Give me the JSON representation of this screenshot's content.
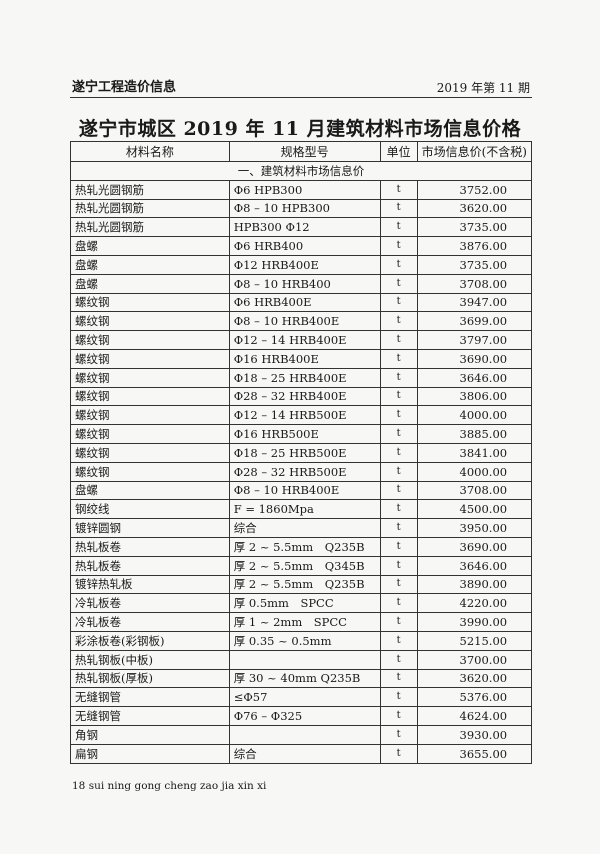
{
  "header": {
    "publication": "遂宁工程造价信息",
    "issue": "2019 年第 11 期"
  },
  "title": "遂宁市城区 2019 年 11 月建筑材料市场信息价格",
  "table": {
    "columns": [
      "材料名称",
      "规格型号",
      "单位",
      "市场信息价(不含税)"
    ],
    "section": "一、建筑材料市场信息价",
    "rows": [
      [
        "热轧光圆钢筋",
        "Φ6 HPB300",
        "t",
        "3752.00"
      ],
      [
        "热轧光圆钢筋",
        "Φ8 – 10 HPB300",
        "t",
        "3620.00"
      ],
      [
        "热轧光圆钢筋",
        "HPB300 Φ12",
        "t",
        "3735.00"
      ],
      [
        "盘螺",
        "Φ6 HRB400",
        "t",
        "3876.00"
      ],
      [
        "盘螺",
        "Φ12 HRB400E",
        "t",
        "3735.00"
      ],
      [
        "盘螺",
        "Φ8 – 10 HRB400",
        "t",
        "3708.00"
      ],
      [
        "螺纹钢",
        "Φ6 HRB400E",
        "t",
        "3947.00"
      ],
      [
        "螺纹钢",
        "Φ8 – 10 HRB400E",
        "t",
        "3699.00"
      ],
      [
        "螺纹钢",
        "Φ12 – 14 HRB400E",
        "t",
        "3797.00"
      ],
      [
        "螺纹钢",
        "Φ16 HRB400E",
        "t",
        "3690.00"
      ],
      [
        "螺纹钢",
        "Φ18 – 25 HRB400E",
        "t",
        "3646.00"
      ],
      [
        "螺纹钢",
        "Φ28 – 32 HRB400E",
        "t",
        "3806.00"
      ],
      [
        "螺纹钢",
        "Φ12 – 14 HRB500E",
        "t",
        "4000.00"
      ],
      [
        "螺纹钢",
        "Φ16 HRB500E",
        "t",
        "3885.00"
      ],
      [
        "螺纹钢",
        "Φ18 – 25 HRB500E",
        "t",
        "3841.00"
      ],
      [
        "螺纹钢",
        "Φ28 – 32 HRB500E",
        "t",
        "4000.00"
      ],
      [
        "盘螺",
        "Φ8 – 10 HRB400E",
        "t",
        "3708.00"
      ],
      [
        "钢绞线",
        "F = 1860Mpa",
        "t",
        "4500.00"
      ],
      [
        "镀锌圆钢",
        "综合",
        "t",
        "3950.00"
      ],
      [
        "热轧板卷",
        "厚 2 ~ 5.5mm　Q235B",
        "t",
        "3690.00"
      ],
      [
        "热轧板卷",
        "厚 2 ~ 5.5mm　Q345B",
        "t",
        "3646.00"
      ],
      [
        "镀锌热轧板",
        "厚 2 ~ 5.5mm　Q235B",
        "t",
        "3890.00"
      ],
      [
        "冷轧板卷",
        "厚 0.5mm　SPCC",
        "t",
        "4220.00"
      ],
      [
        "冷轧板卷",
        "厚 1 ~ 2mm　SPCC",
        "t",
        "3990.00"
      ],
      [
        "彩涂板卷(彩钢板)",
        "厚 0.35 ~ 0.5mm",
        "t",
        "5215.00"
      ],
      [
        "热轧钢板(中板)",
        "",
        "t",
        "3700.00"
      ],
      [
        "热轧钢板(厚板)",
        "厚 30 ~ 40mm Q235B",
        "t",
        "3620.00"
      ],
      [
        "无缝钢管",
        "≤Φ57",
        "t",
        "5376.00"
      ],
      [
        "无缝钢管",
        "Φ76 – Φ325",
        "t",
        "4624.00"
      ],
      [
        "角钢",
        "",
        "t",
        "3930.00"
      ],
      [
        "扁钢",
        "综合",
        "t",
        "3655.00"
      ]
    ]
  },
  "footer": "18 sui ning gong cheng zao jia xin xi"
}
